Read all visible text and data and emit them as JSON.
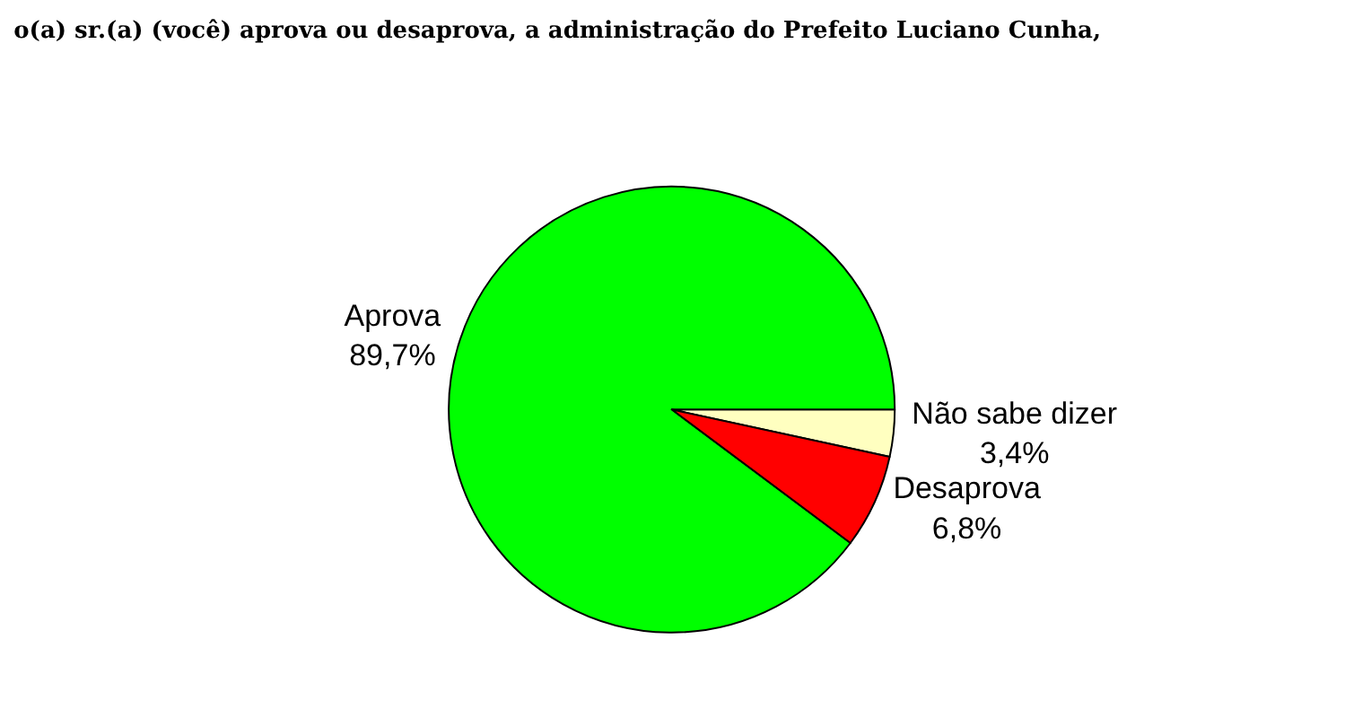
{
  "chart_data": {
    "type": "pie",
    "title": "o(a) sr.(a) (você) aprova ou desaprova, a administração do Prefeito Luciano Cunha,",
    "categories": [
      "Não sabe dizer",
      "Aprova",
      "Desaprova"
    ],
    "values": [
      3.4,
      89.7,
      6.8
    ],
    "value_labels": [
      "3,4%",
      "89,7%",
      "6,8%"
    ],
    "colors": [
      "#ffffc0",
      "#00ff00",
      "#ff0000"
    ],
    "legend": false
  }
}
